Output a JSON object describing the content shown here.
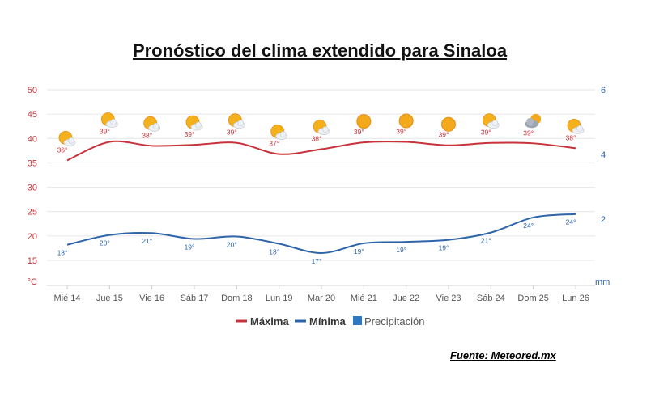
{
  "title": "Pronóstico del clima extendido para Sinaloa",
  "source": "Fuente: Meteored.mx",
  "colors": {
    "max": "#c8333b",
    "min": "#2e64a8",
    "precip": "#2e78c2",
    "grid": "#e6e6e6"
  },
  "chart_data": {
    "type": "line",
    "categories": [
      "Mié 14",
      "Jue 15",
      "Vie 16",
      "Sáb 17",
      "Dom 18",
      "Lun 19",
      "Mar 20",
      "Mié 21",
      "Jue 22",
      "Vie 23",
      "Sáb 24",
      "Dom 25",
      "Lun 26"
    ],
    "series": [
      {
        "name": "Máxima",
        "values": [
          36,
          39,
          38,
          39,
          39,
          37,
          38,
          39,
          39,
          39,
          39,
          39,
          38
        ],
        "line": [
          35.5,
          39.3,
          38.5,
          38.7,
          39.1,
          36.8,
          37.8,
          39.2,
          39.3,
          38.6,
          39.1,
          39.0,
          38.0
        ],
        "labels": [
          "36°",
          "39°",
          "38°",
          "39°",
          "39°",
          "37°",
          "38°",
          "39°",
          "39°",
          "39°",
          "39°",
          "39°",
          "38°"
        ]
      },
      {
        "name": "Mínima",
        "values": [
          18,
          20,
          21,
          19,
          20,
          18,
          17,
          19,
          19,
          19,
          21,
          24,
          24
        ],
        "line": [
          18.2,
          20.2,
          20.6,
          19.4,
          19.9,
          18.4,
          16.5,
          18.5,
          18.8,
          19.2,
          20.7,
          23.8,
          24.5
        ],
        "labels": [
          "18°",
          "20°",
          "21°",
          "19°",
          "20°",
          "18°",
          "17°",
          "19°",
          "19°",
          "19°",
          "21°",
          "24°",
          "24°"
        ]
      }
    ],
    "legend": [
      {
        "name": "Máxima",
        "marker": "line"
      },
      {
        "name": "Mínima",
        "marker": "line"
      },
      {
        "name": "Precipitación",
        "marker": "square"
      }
    ],
    "icons": [
      "sun-cloud",
      "sun-cloud",
      "sun-cloud",
      "sun-cloud",
      "sun-cloud",
      "sun-cloud",
      "sun-cloud",
      "sun",
      "sun",
      "sun",
      "sun-cloud",
      "cloud-sun",
      "sun-cloud"
    ],
    "y_left": {
      "ticks": [
        15,
        20,
        25,
        30,
        35,
        40,
        45,
        50
      ],
      "unit": "°C",
      "range": [
        10,
        50
      ]
    },
    "y_right": {
      "ticks": [
        2,
        4,
        6
      ],
      "unit": "mm",
      "range": [
        0,
        6
      ]
    },
    "grid": true,
    "legend_position": "bottom-center"
  }
}
